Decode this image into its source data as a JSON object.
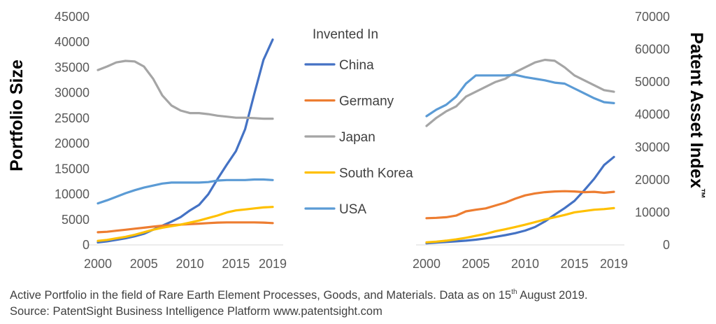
{
  "chart_data": [
    {
      "type": "line",
      "xlabel": "",
      "ylabel": "Portfolio Size",
      "ylim": [
        0,
        45000
      ],
      "yticks": [
        0,
        5000,
        10000,
        15000,
        20000,
        25000,
        30000,
        35000,
        40000,
        45000
      ],
      "xlim": [
        2000,
        2019
      ],
      "xticks": [
        2000,
        2005,
        2010,
        2015,
        2019
      ],
      "grid": false,
      "x": [
        2000,
        2001,
        2002,
        2003,
        2004,
        2005,
        2006,
        2007,
        2008,
        2009,
        2010,
        2011,
        2012,
        2013,
        2014,
        2015,
        2016,
        2017,
        2018,
        2019
      ],
      "series": [
        {
          "name": "China",
          "color": "#4472C4",
          "values": [
            500,
            700,
            1000,
            1300,
            1700,
            2200,
            3000,
            3800,
            4600,
            5500,
            6800,
            7900,
            10000,
            13000,
            15800,
            18500,
            22800,
            29800,
            36500,
            40500
          ]
        },
        {
          "name": "Germany",
          "color": "#ED7D31",
          "values": [
            2500,
            2600,
            2800,
            3000,
            3200,
            3400,
            3600,
            3800,
            3900,
            4000,
            4100,
            4200,
            4300,
            4400,
            4450,
            4450,
            4450,
            4450,
            4400,
            4300
          ]
        },
        {
          "name": "Japan",
          "color": "#A5A5A5",
          "values": [
            34500,
            35200,
            36000,
            36300,
            36200,
            35200,
            32800,
            29500,
            27500,
            26500,
            26000,
            26000,
            25800,
            25500,
            25300,
            25100,
            25100,
            25000,
            24900,
            24900
          ]
        },
        {
          "name": "South Korea",
          "color": "#FFC000",
          "values": [
            800,
            1000,
            1300,
            1600,
            2000,
            2500,
            3000,
            3400,
            3700,
            4000,
            4400,
            4800,
            5300,
            5800,
            6400,
            6800,
            7000,
            7200,
            7400,
            7500
          ]
        },
        {
          "name": "USA",
          "color": "#5B9BD5",
          "values": [
            8200,
            8800,
            9500,
            10200,
            10800,
            11300,
            11700,
            12100,
            12300,
            12300,
            12300,
            12300,
            12400,
            12700,
            12800,
            12800,
            12800,
            12900,
            12900,
            12800
          ]
        }
      ]
    },
    {
      "type": "line",
      "xlabel": "",
      "ylabel": "Patent Asset Index™",
      "ylim": [
        0,
        70000
      ],
      "yticks": [
        0,
        10000,
        20000,
        30000,
        40000,
        50000,
        60000,
        70000
      ],
      "xlim": [
        2000,
        2019
      ],
      "xticks": [
        2000,
        2005,
        2010,
        2015,
        2019
      ],
      "grid": false,
      "x": [
        2000,
        2001,
        2002,
        2003,
        2004,
        2005,
        2006,
        2007,
        2008,
        2009,
        2010,
        2011,
        2012,
        2013,
        2014,
        2015,
        2016,
        2017,
        2018,
        2019
      ],
      "series": [
        {
          "name": "China",
          "color": "#4472C4",
          "values": [
            500,
            700,
            900,
            1100,
            1300,
            1600,
            2000,
            2500,
            3000,
            3600,
            4400,
            5500,
            7200,
            9300,
            11300,
            13500,
            16800,
            20300,
            24500,
            27000
          ]
        },
        {
          "name": "Germany",
          "color": "#ED7D31",
          "values": [
            8200,
            8300,
            8500,
            9000,
            10300,
            10800,
            11200,
            12100,
            13000,
            14200,
            15200,
            15800,
            16200,
            16400,
            16500,
            16400,
            16200,
            16300,
            16000,
            16300
          ]
        },
        {
          "name": "Japan",
          "color": "#A5A5A5",
          "values": [
            36500,
            39000,
            41000,
            42500,
            45500,
            47000,
            48500,
            50000,
            51000,
            53000,
            54500,
            56000,
            56800,
            56500,
            54500,
            52000,
            50500,
            49000,
            47500,
            47000
          ]
        },
        {
          "name": "South Korea",
          "color": "#FFC000",
          "values": [
            800,
            1000,
            1300,
            1700,
            2200,
            2800,
            3400,
            4200,
            4800,
            5500,
            6200,
            7000,
            7800,
            8500,
            9200,
            10000,
            10400,
            10800,
            11000,
            11300
          ]
        },
        {
          "name": "USA",
          "color": "#5B9BD5",
          "values": [
            39500,
            41500,
            43000,
            45500,
            49500,
            52000,
            52000,
            52000,
            52000,
            52200,
            51500,
            51000,
            50500,
            49800,
            49500,
            48000,
            46500,
            45000,
            43800,
            43500
          ]
        }
      ]
    }
  ],
  "legend": {
    "title": "Invented In",
    "placement": "center",
    "items": [
      {
        "name": "China",
        "color": "#4472C4"
      },
      {
        "name": "Germany",
        "color": "#ED7D31"
      },
      {
        "name": "Japan",
        "color": "#A5A5A5"
      },
      {
        "name": "South Korea",
        "color": "#FFC000"
      },
      {
        "name": "USA",
        "color": "#5B9BD5"
      }
    ]
  },
  "caption": {
    "line1_main": "Active Portfolio in the field of Rare Earth Element Processes, Goods, and Materials. Data as on 15",
    "line1_sup": "th",
    "line1_end": " August 2019.",
    "line2": "Source: PatentSight Business Intelligence Platform www.patentsight.com"
  }
}
